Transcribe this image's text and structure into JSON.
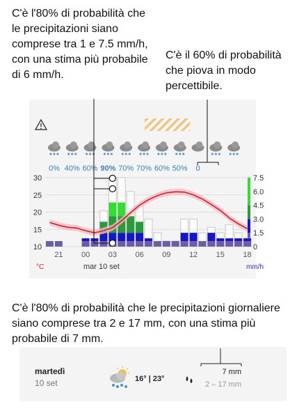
{
  "callouts": {
    "top_left": "C'è l'80% di probabilità che le precipitazioni siano comprese tra 1 e 7.5 mm/h, con una stima più probabile di 6 mm/h.",
    "top_right": "C'è il 60% di probabilità che piova in modo percettibile.",
    "daily": "C'è l'80% di probabilità che le precipitazioni giornaliere siano comprese tra 2 e 17 mm, con una stima più probabile di 7 mm."
  },
  "meteogram": {
    "warning_icon": "warning-triangle-icon",
    "hatch_icon": "hatched-warning-band",
    "weather_icons": [
      "rain-cloud-icon",
      "rain-cloud-icon",
      "rain-cloud-icon",
      "rain-cloud-icon",
      "rain-cloud-icon",
      "rain-cloud-icon",
      "rain-cloud-icon",
      "rain-cloud-icon",
      "cloud-icon",
      "rain-cloud-icon",
      "rain-cloud-icon"
    ],
    "probabilities": [
      "0%",
      "40%",
      "60%",
      "90%",
      "70%",
      "70%",
      "60%",
      "50%",
      "0"
    ],
    "time_ticks": [
      "21",
      "00",
      "03",
      "06",
      "09",
      "12",
      "15",
      "18"
    ],
    "date_label": "mar 10 set",
    "temp_unit": "°C",
    "precip_unit": "mm/h",
    "temp_axis_labels": [
      "30",
      "25",
      "20",
      "15",
      "10"
    ],
    "precip_axis_labels": [
      "7.5",
      "6.0",
      "4.5",
      "3.0",
      "1.5",
      "0"
    ],
    "colors": {
      "temp_line": "#d32020",
      "temp_band": "#f3b8c4",
      "prob": "#3b7fc4",
      "purple": "#6d5ca6",
      "blue": "#1515cc",
      "green": "#2a9a3a",
      "bright_green": "#33dd33",
      "hatch": "#f0a050"
    }
  },
  "chart_data": {
    "type": "bar",
    "x": [
      "20",
      "21",
      "22",
      "23",
      "00",
      "01",
      "02",
      "03",
      "04",
      "05",
      "06",
      "07",
      "08",
      "09",
      "10",
      "11",
      "12",
      "13",
      "14",
      "15",
      "16",
      "17",
      "18"
    ],
    "temp_axis_ylim": [
      10,
      30
    ],
    "precip_axis_ylim": [
      0,
      7.5
    ],
    "series": [
      {
        "values": [
          0.6,
          0.6,
          0.0,
          0.0,
          0.6,
          0.6,
          0.6,
          0.6,
          0.6,
          0.6,
          0.6,
          0.6,
          0.6,
          0.6,
          0.6,
          0.6,
          0.6,
          0.6,
          0.6,
          0.6,
          0.6,
          0.6,
          0.6
        ]
      },
      {
        "values": [
          0.0,
          0.0,
          0.0,
          0.0,
          0.3,
          0.3,
          0.9,
          0.9,
          0.9,
          0.9,
          0.9,
          0.3,
          0.0,
          0.0,
          0.0,
          0.9,
          0.9,
          0.0,
          0.9,
          0.3,
          0.3,
          0.3,
          0.3
        ]
      },
      {
        "values": [
          0.0,
          0.0,
          0.0,
          0.0,
          0.0,
          0.0,
          1.2,
          1.8,
          1.8,
          1.8,
          1.2,
          0.0,
          0.0,
          0.0,
          0.0,
          0.0,
          0.0,
          0.0,
          0.0,
          0.0,
          0.0,
          0.0,
          0.0
        ]
      },
      {
        "values": [
          0.0,
          0.0,
          0.0,
          0.0,
          0.0,
          0.0,
          0.0,
          1.5,
          1.5,
          0.0,
          0.0,
          0.0,
          0.0,
          0.0,
          0.0,
          0.0,
          0.0,
          0.0,
          0.0,
          0.0,
          0.0,
          0.0,
          0.0
        ]
      },
      {
        "values": [
          0.0,
          0.0,
          0.0,
          0.0,
          0.3,
          0.0,
          3.9,
          7.5,
          7.5,
          6.0,
          4.5,
          3.0,
          1.5,
          0.6,
          0.6,
          3.0,
          3.0,
          1.5,
          2.1,
          1.5,
          2.4,
          1.5,
          0.9
        ]
      },
      {
        "values": [
          17.0,
          16.2,
          15.6,
          15.4,
          14.6,
          14.0,
          14.6,
          15.5,
          17.5,
          19.8,
          22.0,
          23.6,
          24.8,
          25.6,
          25.9,
          25.8,
          25.0,
          23.8,
          22.2,
          20.5,
          18.3,
          16.6,
          15.2
        ]
      }
    ],
    "interval_marker": {
      "x": "03",
      "most_likely": 6.0,
      "range": [
        1.0,
        7.5
      ]
    }
  },
  "daily": {
    "day_name": "martedì",
    "date": "10 set",
    "weather_icon": "sun-cloud-rain-icon",
    "temps": "16° | 23°",
    "drops_icon": "rain-drops-icon",
    "precip": "7 mm",
    "precip_range": "2 – 17 mm"
  }
}
